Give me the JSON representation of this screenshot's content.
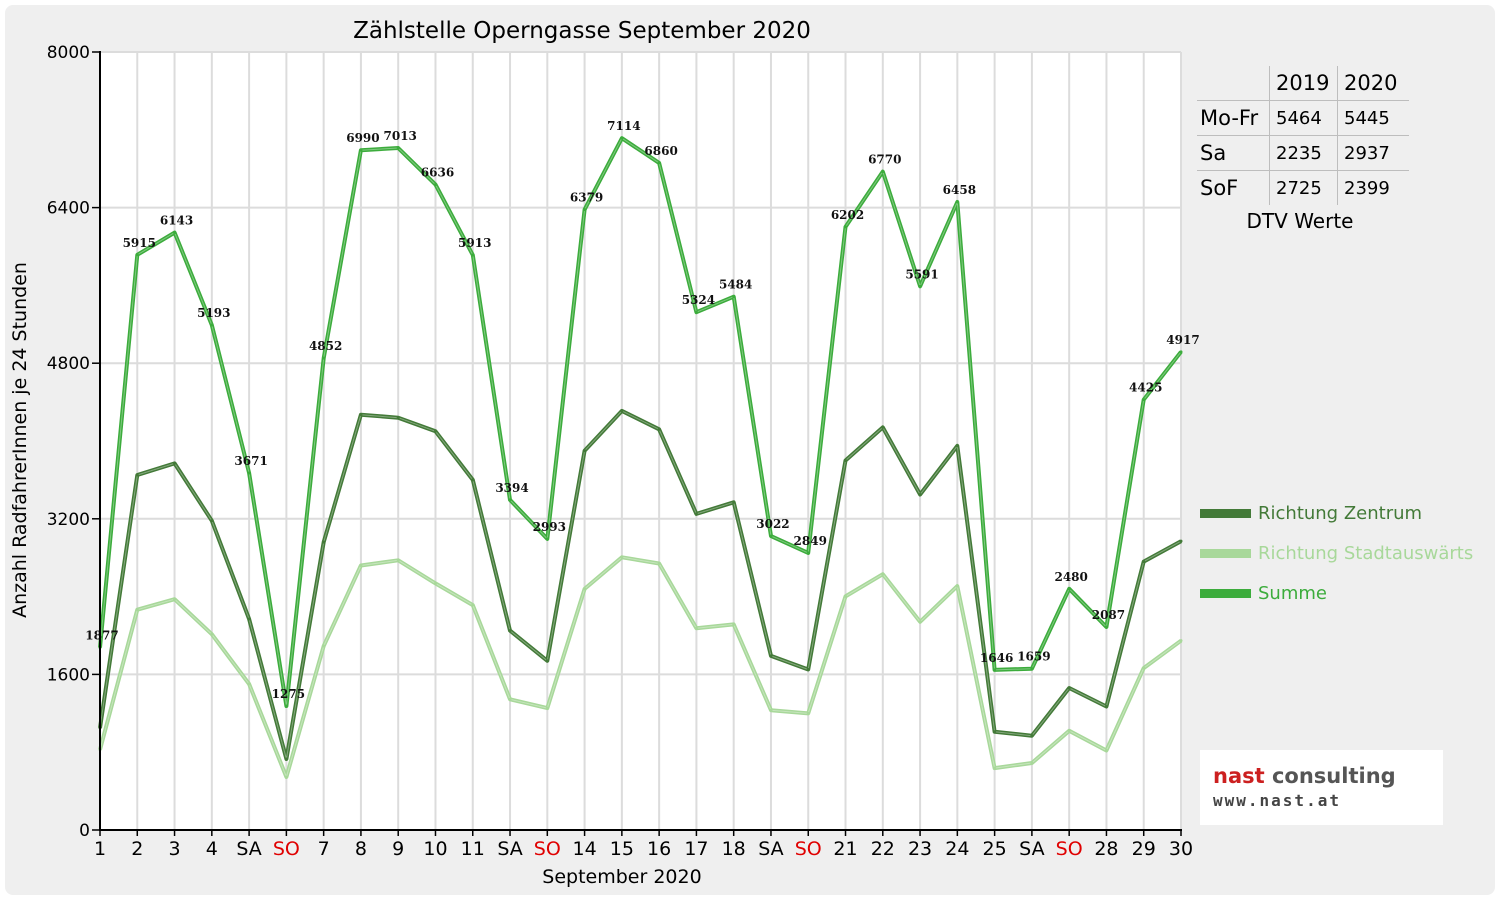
{
  "chart_data": {
    "type": "line",
    "title": "Zählstelle Operngasse September 2020",
    "xlabel": "September 2020",
    "ylabel": "Anzahl RadfahrerInnen je 24 Stunden",
    "ylim": [
      0,
      8000
    ],
    "yticks": [
      "0",
      "1600",
      "3200",
      "4800",
      "6400",
      "8000"
    ],
    "grid": true,
    "legend_position": "right",
    "categories": [
      "1",
      "2",
      "3",
      "4",
      "SA",
      "SO",
      "7",
      "8",
      "9",
      "10",
      "11",
      "SA",
      "SO",
      "14",
      "15",
      "16",
      "17",
      "18",
      "SA",
      "SO",
      "21",
      "22",
      "23",
      "24",
      "25",
      "SA",
      "SO",
      "28",
      "29",
      "30"
    ],
    "highlight_category": "SO",
    "highlight_color": "#e00000",
    "series": [
      {
        "name": "Richtung Zentrum",
        "color": "#437a38",
        "values": [
          1050,
          3650,
          3770,
          3180,
          2170,
          730,
          2960,
          4270,
          4240,
          4100,
          3600,
          2050,
          1740,
          3900,
          4310,
          4120,
          3250,
          3370,
          1790,
          1650,
          3800,
          4140,
          3450,
          3950,
          1010,
          970,
          1460,
          1270,
          2760,
          2970
        ],
        "labels": false
      },
      {
        "name": "Richtung Stadtauswärts",
        "color": "#a8d89a",
        "values": [
          827,
          2265,
          2373,
          2013,
          1501,
          545,
          1892,
          2720,
          2773,
          2536,
          2313,
          1344,
          1253,
          2479,
          2804,
          2740,
          2074,
          2114,
          1232,
          1199,
          2402,
          2630,
          2141,
          2508,
          636,
          689,
          1020,
          817,
          1665,
          1947
        ],
        "labels": false
      },
      {
        "name": "Summe",
        "color": "#3cac3c",
        "values": [
          1877,
          5915,
          6143,
          5193,
          3671,
          1275,
          4852,
          6990,
          7013,
          6636,
          5913,
          3394,
          2993,
          6379,
          7114,
          6860,
          5324,
          5484,
          3022,
          2849,
          6202,
          6770,
          5591,
          6458,
          1646,
          1659,
          2480,
          2087,
          4425,
          4917
        ],
        "labels": true
      }
    ]
  },
  "dtv_table": {
    "headers": [
      "",
      "2019",
      "2020"
    ],
    "rows": [
      {
        "label": "Mo-Fr",
        "v2019": "5464",
        "v2020": "5445"
      },
      {
        "label": "Sa",
        "v2019": "2235",
        "v2020": "2937"
      },
      {
        "label": "SoF",
        "v2019": "2725",
        "v2020": "2399"
      }
    ],
    "caption": "DTV Werte"
  },
  "logo": {
    "name_part1": "nast",
    "name_part2": "consulting",
    "url": "www.nast.at"
  }
}
